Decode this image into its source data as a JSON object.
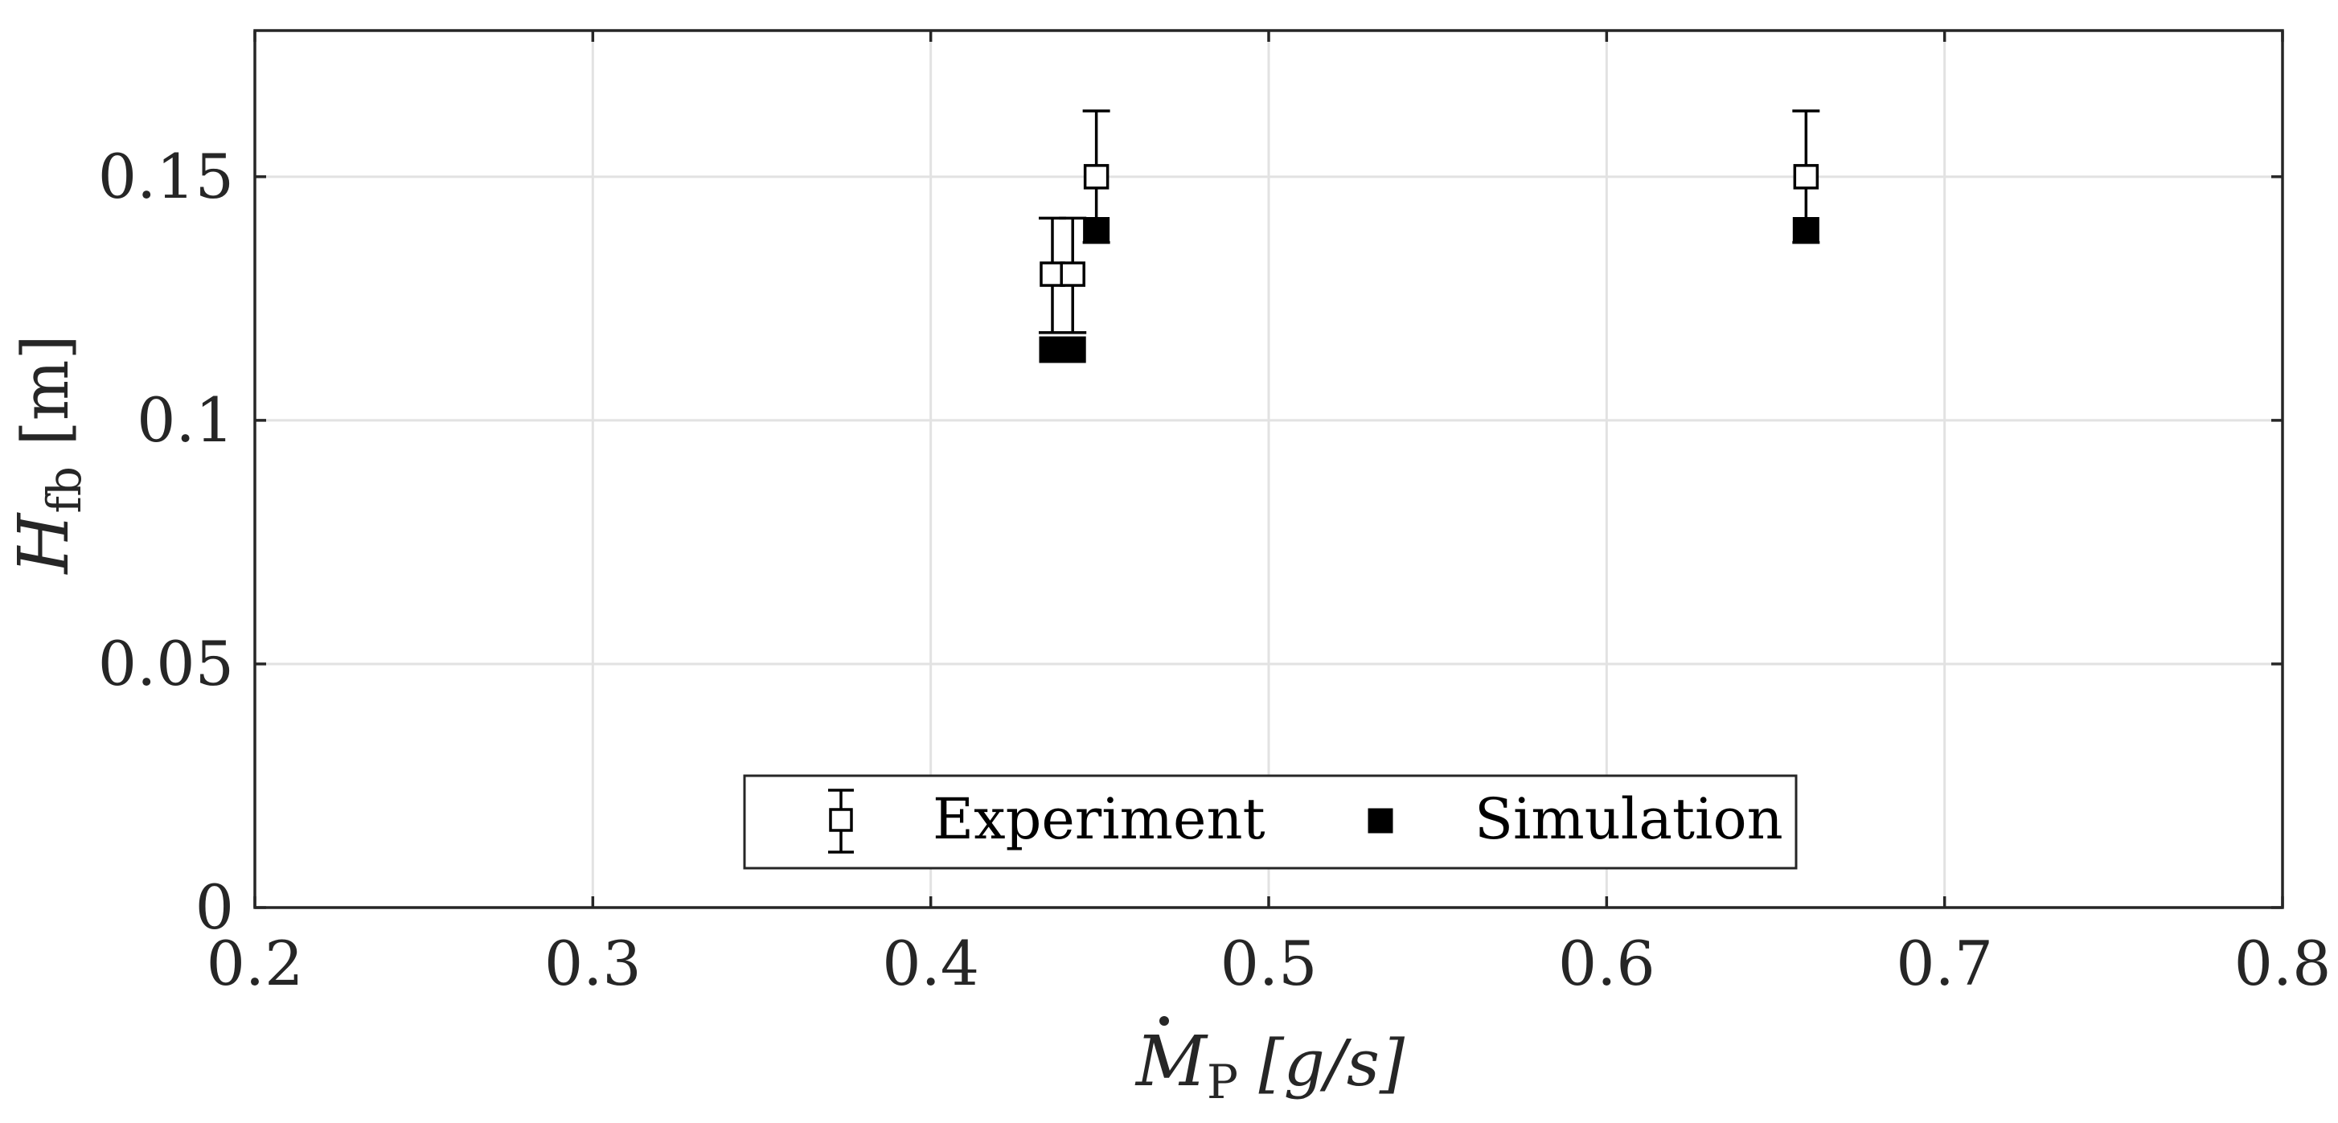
{
  "chart_data": {
    "type": "scatter",
    "title": "",
    "xlabel": {
      "main": "M",
      "sub": "P",
      "unit": "[g/s]"
    },
    "ylabel": {
      "main": "H",
      "sub": "fb",
      "unit": "[m]"
    },
    "xlim": [
      0.2,
      0.8
    ],
    "ylim": [
      0,
      0.18
    ],
    "xticks": [
      0.2,
      0.3,
      0.4,
      0.5,
      0.6,
      0.7,
      0.8
    ],
    "xtick_labels": [
      "0.2",
      "0.3",
      "0.4",
      "0.5",
      "0.6",
      "0.7",
      "0.8"
    ],
    "yticks": [
      0,
      0.05,
      0.1,
      0.15
    ],
    "ytick_labels": [
      "0",
      "0.05",
      "0.1",
      "0.15"
    ],
    "grid": true,
    "legend_position": "bottom-center",
    "series": [
      {
        "name": "Experiment",
        "marker": "open-square",
        "x": [
          0.436,
          0.442,
          0.449,
          0.659
        ],
        "y": [
          0.13,
          0.13,
          0.15,
          0.15
        ],
        "err_low": [
          0.012,
          0.012,
          0.0135,
          0.0135
        ],
        "err_high": [
          0.0115,
          0.0115,
          0.0135,
          0.0135
        ]
      },
      {
        "name": "Simulation",
        "marker": "filled-square",
        "x": [
          0.436,
          0.442,
          0.449,
          0.659
        ],
        "y": [
          0.1145,
          0.1145,
          0.139,
          0.139
        ]
      }
    ]
  }
}
